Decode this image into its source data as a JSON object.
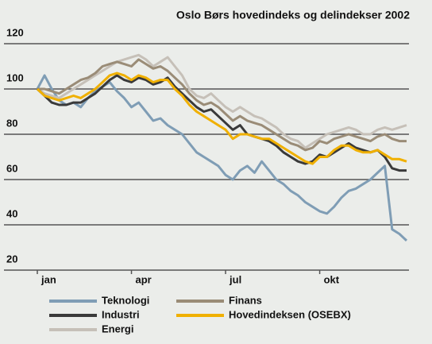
{
  "chart_data": {
    "type": "line",
    "title": "Oslo Børs hovedindeks og delindekser 2002",
    "categories": [
      "jan",
      null,
      null,
      null,
      null,
      null,
      null,
      null,
      null,
      null,
      null,
      null,
      null,
      "apr",
      null,
      null,
      null,
      null,
      null,
      null,
      null,
      null,
      null,
      null,
      null,
      null,
      "jul",
      null,
      null,
      null,
      null,
      null,
      null,
      null,
      null,
      null,
      null,
      null,
      null,
      "okt",
      null,
      null,
      null,
      null,
      null,
      null,
      null,
      null,
      null,
      null,
      null,
      null
    ],
    "series": [
      {
        "name": "Teknologi",
        "color": "#7f9db5",
        "values": [
          100,
          106,
          100,
          95,
          93,
          94,
          92,
          96,
          99,
          101,
          103,
          99,
          96,
          92,
          94,
          90,
          86,
          87,
          84,
          82,
          80,
          76,
          72,
          70,
          68,
          66,
          62,
          60,
          64,
          66,
          63,
          68,
          64,
          60,
          58,
          55,
          53,
          50,
          48,
          46,
          45,
          48,
          52,
          55,
          56,
          58,
          60,
          63,
          66,
          38,
          36,
          33
        ]
      },
      {
        "name": "Finans",
        "color": "#9a8c77",
        "values": [
          100,
          100,
          99,
          98,
          100,
          102,
          104,
          105,
          107,
          110,
          111,
          112,
          111,
          110,
          113,
          111,
          109,
          110,
          108,
          105,
          102,
          98,
          95,
          93,
          94,
          92,
          89,
          86,
          88,
          86,
          85,
          84,
          82,
          80,
          78,
          76,
          75,
          73,
          74,
          77,
          76,
          78,
          79,
          80,
          79,
          78,
          77,
          79,
          80,
          78,
          77,
          77
        ]
      },
      {
        "name": "Industri",
        "color": "#3a3a3a",
        "values": [
          100,
          97,
          94,
          93,
          93,
          94,
          94,
          96,
          98,
          101,
          104,
          106,
          104,
          103,
          105,
          104,
          102,
          103,
          105,
          101,
          98,
          95,
          92,
          90,
          91,
          88,
          85,
          82,
          84,
          80,
          79,
          78,
          77,
          75,
          72,
          70,
          68,
          67,
          68,
          71,
          70,
          72,
          74,
          76,
          74,
          73,
          72,
          73,
          70,
          65,
          64,
          64
        ]
      },
      {
        "name": "Hovedindeksen (OSEBX)",
        "color": "#f0b000",
        "values": [
          100,
          97,
          96,
          95,
          96,
          97,
          96,
          98,
          100,
          103,
          106,
          107,
          106,
          104,
          106,
          105,
          103,
          104,
          104,
          100,
          97,
          93,
          90,
          88,
          86,
          84,
          82,
          78,
          80,
          80,
          79,
          78,
          78,
          76,
          74,
          72,
          70,
          68,
          67,
          70,
          70,
          73,
          75,
          75,
          73,
          72,
          72,
          73,
          71,
          69,
          69,
          68
        ]
      },
      {
        "name": "Energi",
        "color": "#c6c0b8",
        "values": [
          100,
          98,
          97,
          96,
          98,
          100,
          102,
          104,
          106,
          108,
          110,
          112,
          113,
          114,
          115,
          113,
          110,
          112,
          114,
          110,
          106,
          100,
          97,
          96,
          98,
          95,
          92,
          90,
          92,
          90,
          88,
          87,
          85,
          83,
          80,
          78,
          77,
          74,
          76,
          78,
          80,
          81,
          82,
          83,
          82,
          80,
          80,
          82,
          83,
          82,
          83,
          84
        ]
      }
    ],
    "ylim": [
      20,
      120
    ],
    "yticks": [
      20,
      40,
      60,
      80,
      100,
      120
    ],
    "grid": true
  }
}
